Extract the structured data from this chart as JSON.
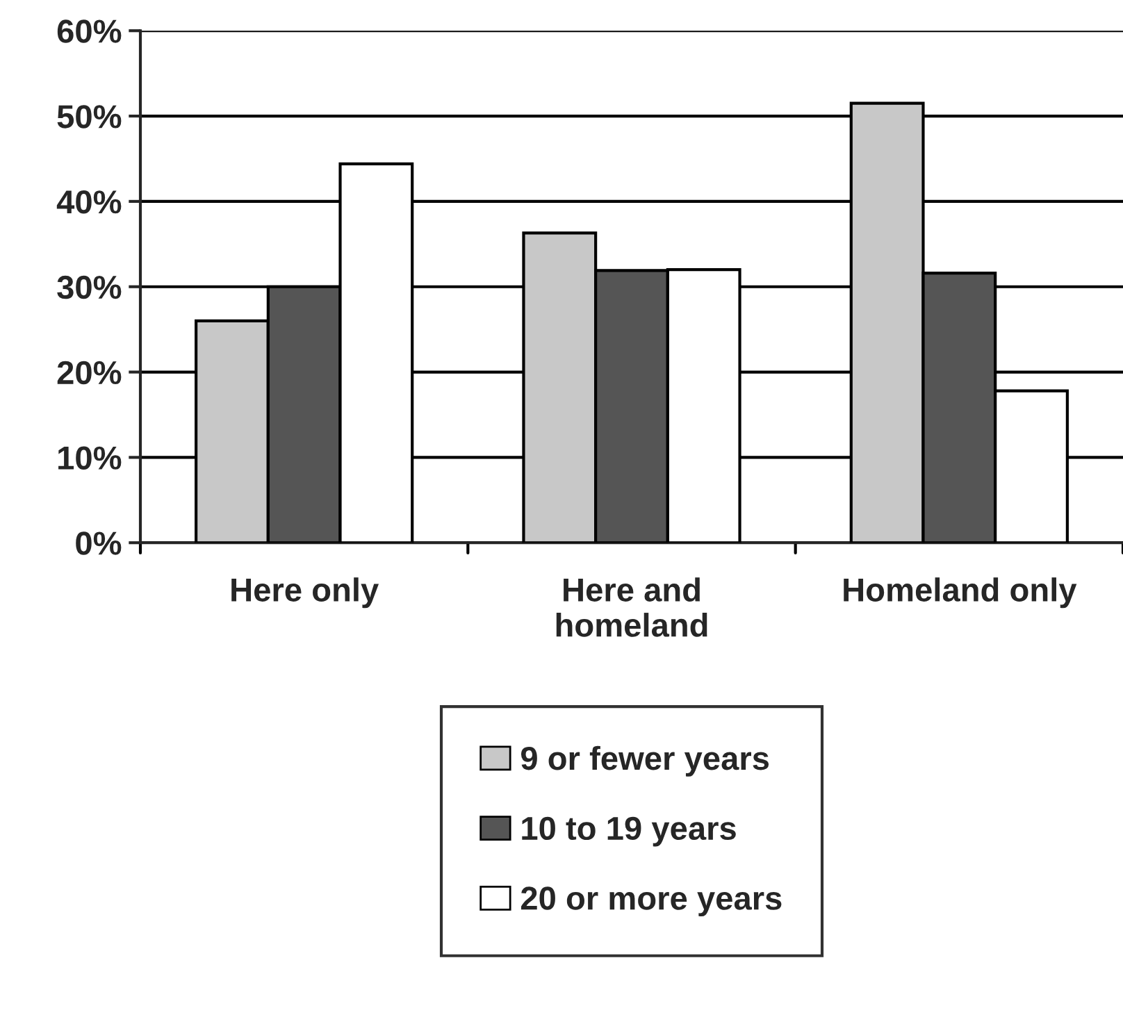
{
  "chart_data": {
    "type": "bar",
    "categories": [
      "Here only",
      "Here and\nhomeland",
      "Homeland only"
    ],
    "series": [
      {
        "name": "9 or fewer years",
        "color": "#c8c8c8",
        "values": [
          26,
          36.3,
          51.5
        ]
      },
      {
        "name": "10 to 19 years",
        "color": "#555555",
        "values": [
          30,
          31.9,
          31.6
        ]
      },
      {
        "name": "20 or more years",
        "color": "#ffffff",
        "values": [
          44.4,
          32,
          17.8
        ]
      }
    ],
    "ylim": [
      0,
      60
    ],
    "yticks": [
      {
        "value": 0,
        "label": "0%"
      },
      {
        "value": 10,
        "label": "10%"
      },
      {
        "value": 20,
        "label": "20%"
      },
      {
        "value": 30,
        "label": "30%"
      },
      {
        "value": 40,
        "label": "40%"
      },
      {
        "value": 50,
        "label": "50%"
      },
      {
        "value": 60,
        "label": "60%"
      }
    ],
    "grid": "y",
    "legend": "bottom"
  }
}
